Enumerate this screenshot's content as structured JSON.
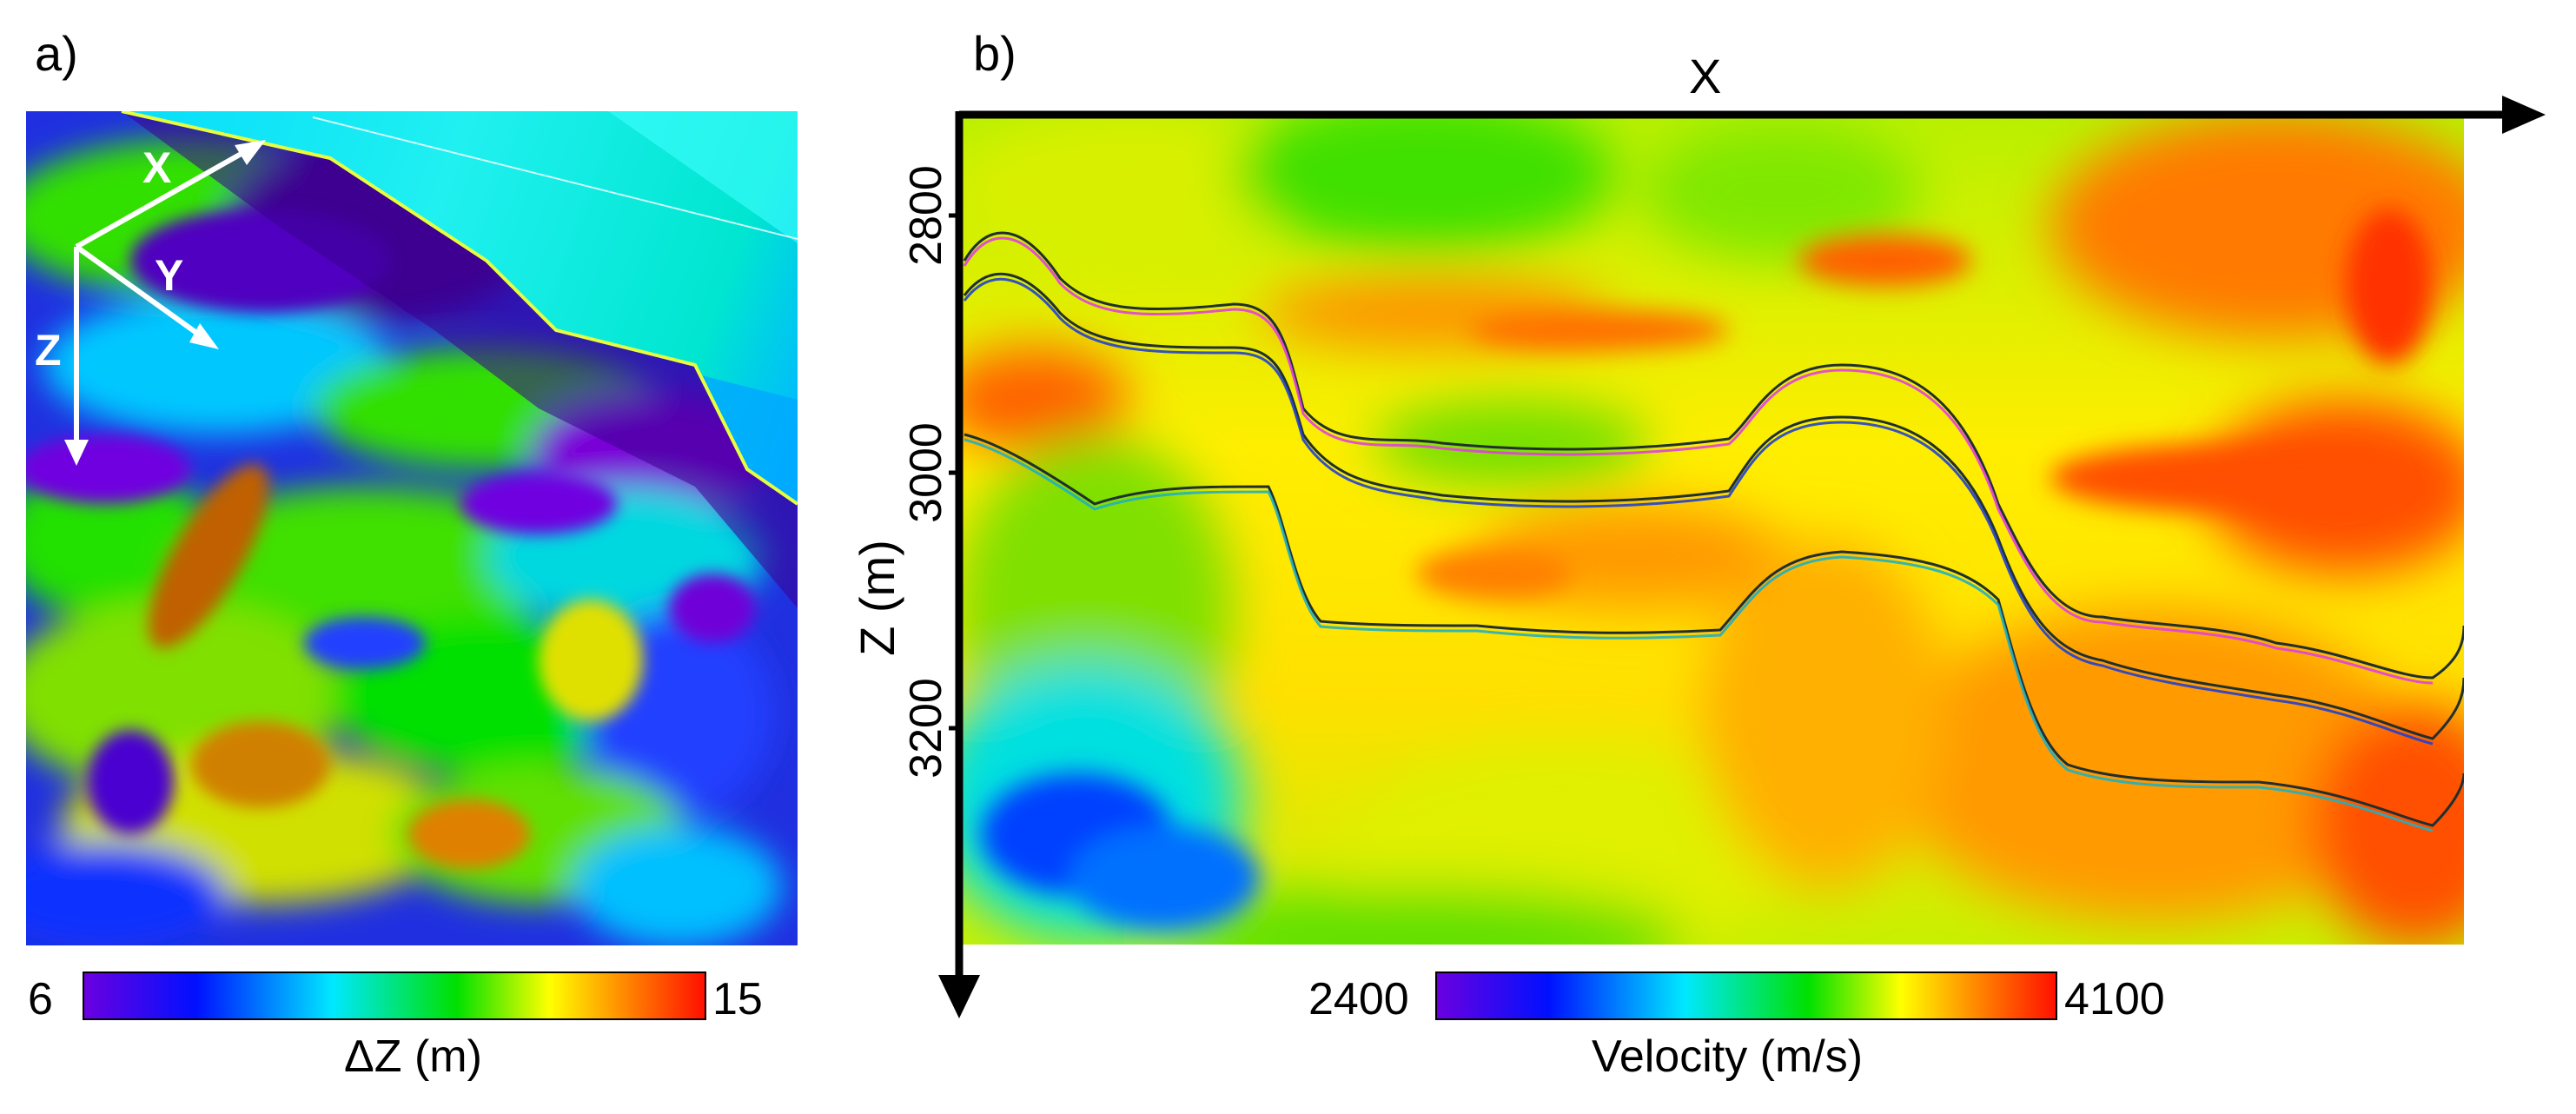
{
  "panel_a": {
    "label": "a)",
    "axes": {
      "x": "X",
      "y": "Y",
      "z": "Z"
    },
    "colorbar": {
      "min": "6",
      "max": "15",
      "title": "ΔZ (m)"
    }
  },
  "panel_b": {
    "label": "b)",
    "x_axis_label": "X",
    "y_axis_label": "Z (m)",
    "y_ticks": [
      "2800",
      "3000",
      "3200"
    ],
    "colorbar": {
      "min": "2400",
      "max": "4100",
      "title": "Velocity (m/s)"
    }
  },
  "colors": {
    "scale": [
      "#5a00d8",
      "#0010ff",
      "#00e8ff",
      "#00e000",
      "#ffff00",
      "#ff8000",
      "#ff1000"
    ]
  }
}
